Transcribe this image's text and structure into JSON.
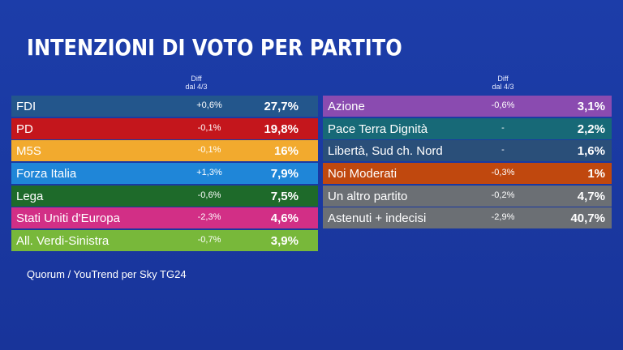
{
  "chart_data": {
    "type": "table",
    "title": "INTENZIONI DI VOTO PER PARTITO",
    "diff_header": [
      "Diff",
      "dal 4/3"
    ],
    "source": "Quorum / YouTrend per Sky TG24",
    "left": [
      {
        "name": "FDI",
        "diff": "+0,6%",
        "value": "27,7%",
        "color": "#23568c"
      },
      {
        "name": "PD",
        "diff": "-0,1%",
        "value": "19,8%",
        "color": "#c4161c"
      },
      {
        "name": "M5S",
        "diff": "-0,1%",
        "value": "16%",
        "color": "#f2aa2e"
      },
      {
        "name": "Forza Italia",
        "diff": "+1,3%",
        "value": "7,9%",
        "color": "#1f86d8"
      },
      {
        "name": "Lega",
        "diff": "-0,6%",
        "value": "7,5%",
        "color": "#1e6a2a"
      },
      {
        "name": "Stati Uniti d'Europa",
        "diff": "-2,3%",
        "value": "4,6%",
        "color": "#d22f86"
      },
      {
        "name": "All. Verdi-Sinistra",
        "diff": "-0,7%",
        "value": "3,9%",
        "color": "#78b83a"
      }
    ],
    "right": [
      {
        "name": "Azione",
        "diff": "-0,6%",
        "value": "3,1%",
        "color": "#8a4bb0"
      },
      {
        "name": "Pace Terra Dignità",
        "diff": "-",
        "value": "2,2%",
        "color": "#176977"
      },
      {
        "name": "Libertà, Sud ch. Nord",
        "diff": "-",
        "value": "1,6%",
        "color": "#2a4f79"
      },
      {
        "name": "Noi Moderati",
        "diff": "-0,3%",
        "value": "1%",
        "color": "#c0480e"
      },
      {
        "name": "Un altro partito",
        "diff": "-0,2%",
        "value": "4,7%",
        "color": "#6b6f74"
      },
      {
        "name": "Astenuti + indecisi",
        "diff": "-2,9%",
        "value": "40,7%",
        "color": "#6b6f74"
      }
    ]
  }
}
